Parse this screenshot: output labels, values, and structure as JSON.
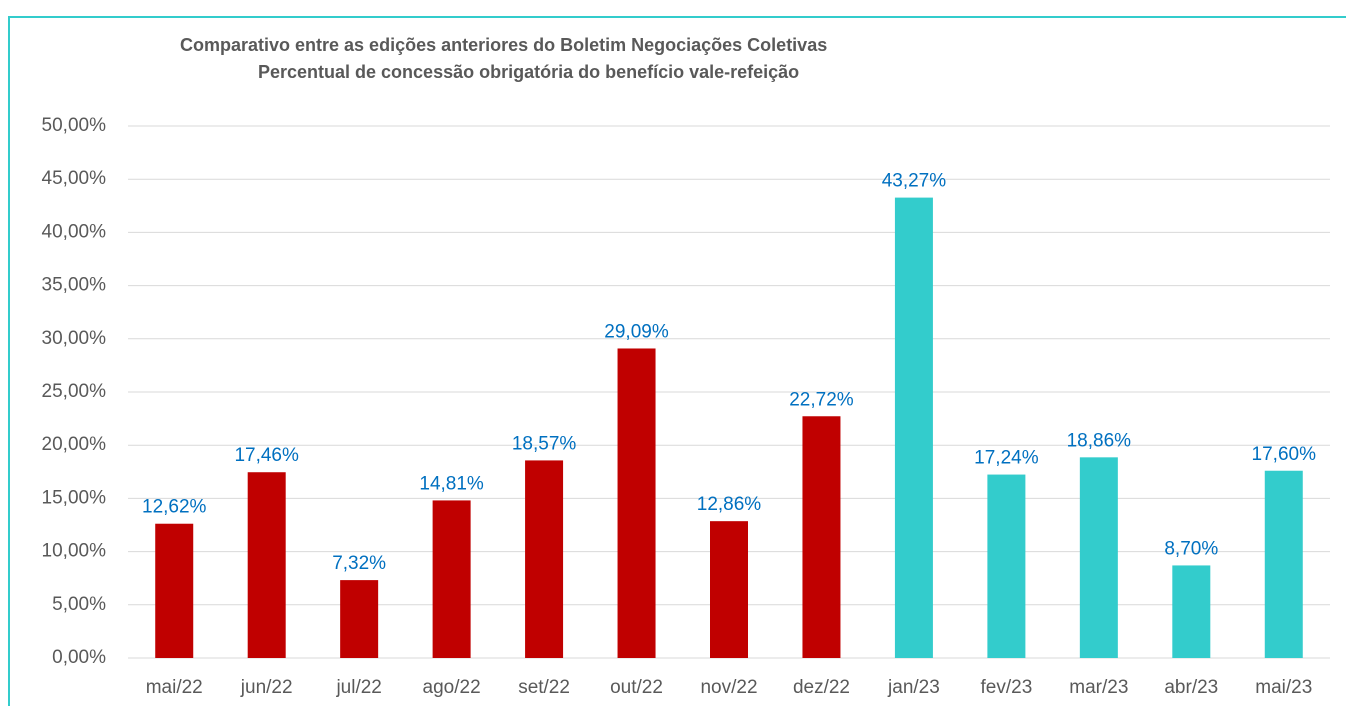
{
  "chart_data": {
    "type": "bar",
    "title": "Comparativo entre as edições anteriores do Boletim Negociações Coletivas",
    "subtitle": "Percentual de concessão obrigatória do benefício vale-refeição",
    "categories": [
      "mai/22",
      "jun/22",
      "jul/22",
      "ago/22",
      "set/22",
      "out/22",
      "nov/22",
      "dez/22",
      "jan/23",
      "fev/23",
      "mar/23",
      "abr/23",
      "mai/23"
    ],
    "values": [
      12.62,
      17.46,
      7.32,
      14.81,
      18.57,
      29.09,
      12.86,
      22.72,
      43.27,
      17.24,
      18.86,
      8.7,
      17.6
    ],
    "value_labels": [
      "12,62%",
      "17,46%",
      "7,32%",
      "14,81%",
      "18,57%",
      "29,09%",
      "12,86%",
      "22,72%",
      "43,27%",
      "17,24%",
      "18,86%",
      "8,70%",
      "17,60%"
    ],
    "colors": [
      "#c00000",
      "#c00000",
      "#c00000",
      "#c00000",
      "#c00000",
      "#c00000",
      "#c00000",
      "#c00000",
      "#33cccc",
      "#33cccc",
      "#33cccc",
      "#33cccc",
      "#33cccc"
    ],
    "ylim": [
      0,
      50
    ],
    "yticks": [
      {
        "value": 0,
        "label": "0,00%"
      },
      {
        "value": 5,
        "label": "5,00%"
      },
      {
        "value": 10,
        "label": "10,00%"
      },
      {
        "value": 15,
        "label": "15,00%"
      },
      {
        "value": 20,
        "label": "20,00%"
      },
      {
        "value": 25,
        "label": "25,00%"
      },
      {
        "value": 30,
        "label": "30,00%"
      },
      {
        "value": 35,
        "label": "35,00%"
      },
      {
        "value": 40,
        "label": "40,00%"
      },
      {
        "value": 45,
        "label": "45,00%"
      },
      {
        "value": 50,
        "label": "50,00%"
      }
    ],
    "grid": true
  }
}
